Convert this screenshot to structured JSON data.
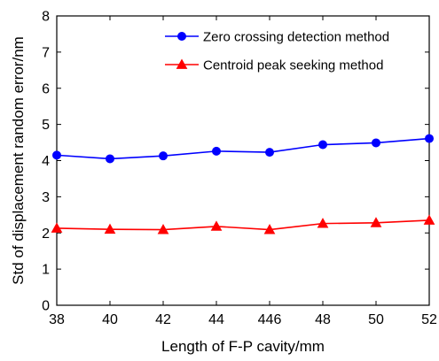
{
  "chart_data": {
    "type": "line",
    "xlabel": "Length of F-P cavity/mm",
    "ylabel": "Std of displacement random error/nm",
    "categories": [
      "38",
      "40",
      "42",
      "44",
      "446",
      "48",
      "50",
      "52"
    ],
    "ylim": [
      0,
      8
    ],
    "yticks": [
      "0",
      "1",
      "2",
      "3",
      "4",
      "5",
      "6",
      "7",
      "8"
    ],
    "grid": false,
    "legend_position": "top-right",
    "series": [
      {
        "name": "Zero crossing detection method",
        "color": "#0000ff",
        "marker": "circle",
        "values": [
          4.15,
          4.05,
          4.13,
          4.26,
          4.23,
          4.44,
          4.49,
          4.61
        ]
      },
      {
        "name": "Centroid peak seeking method",
        "color": "#ff0000",
        "marker": "triangle",
        "values": [
          2.13,
          2.1,
          2.09,
          2.18,
          2.09,
          2.26,
          2.28,
          2.35
        ]
      }
    ]
  }
}
